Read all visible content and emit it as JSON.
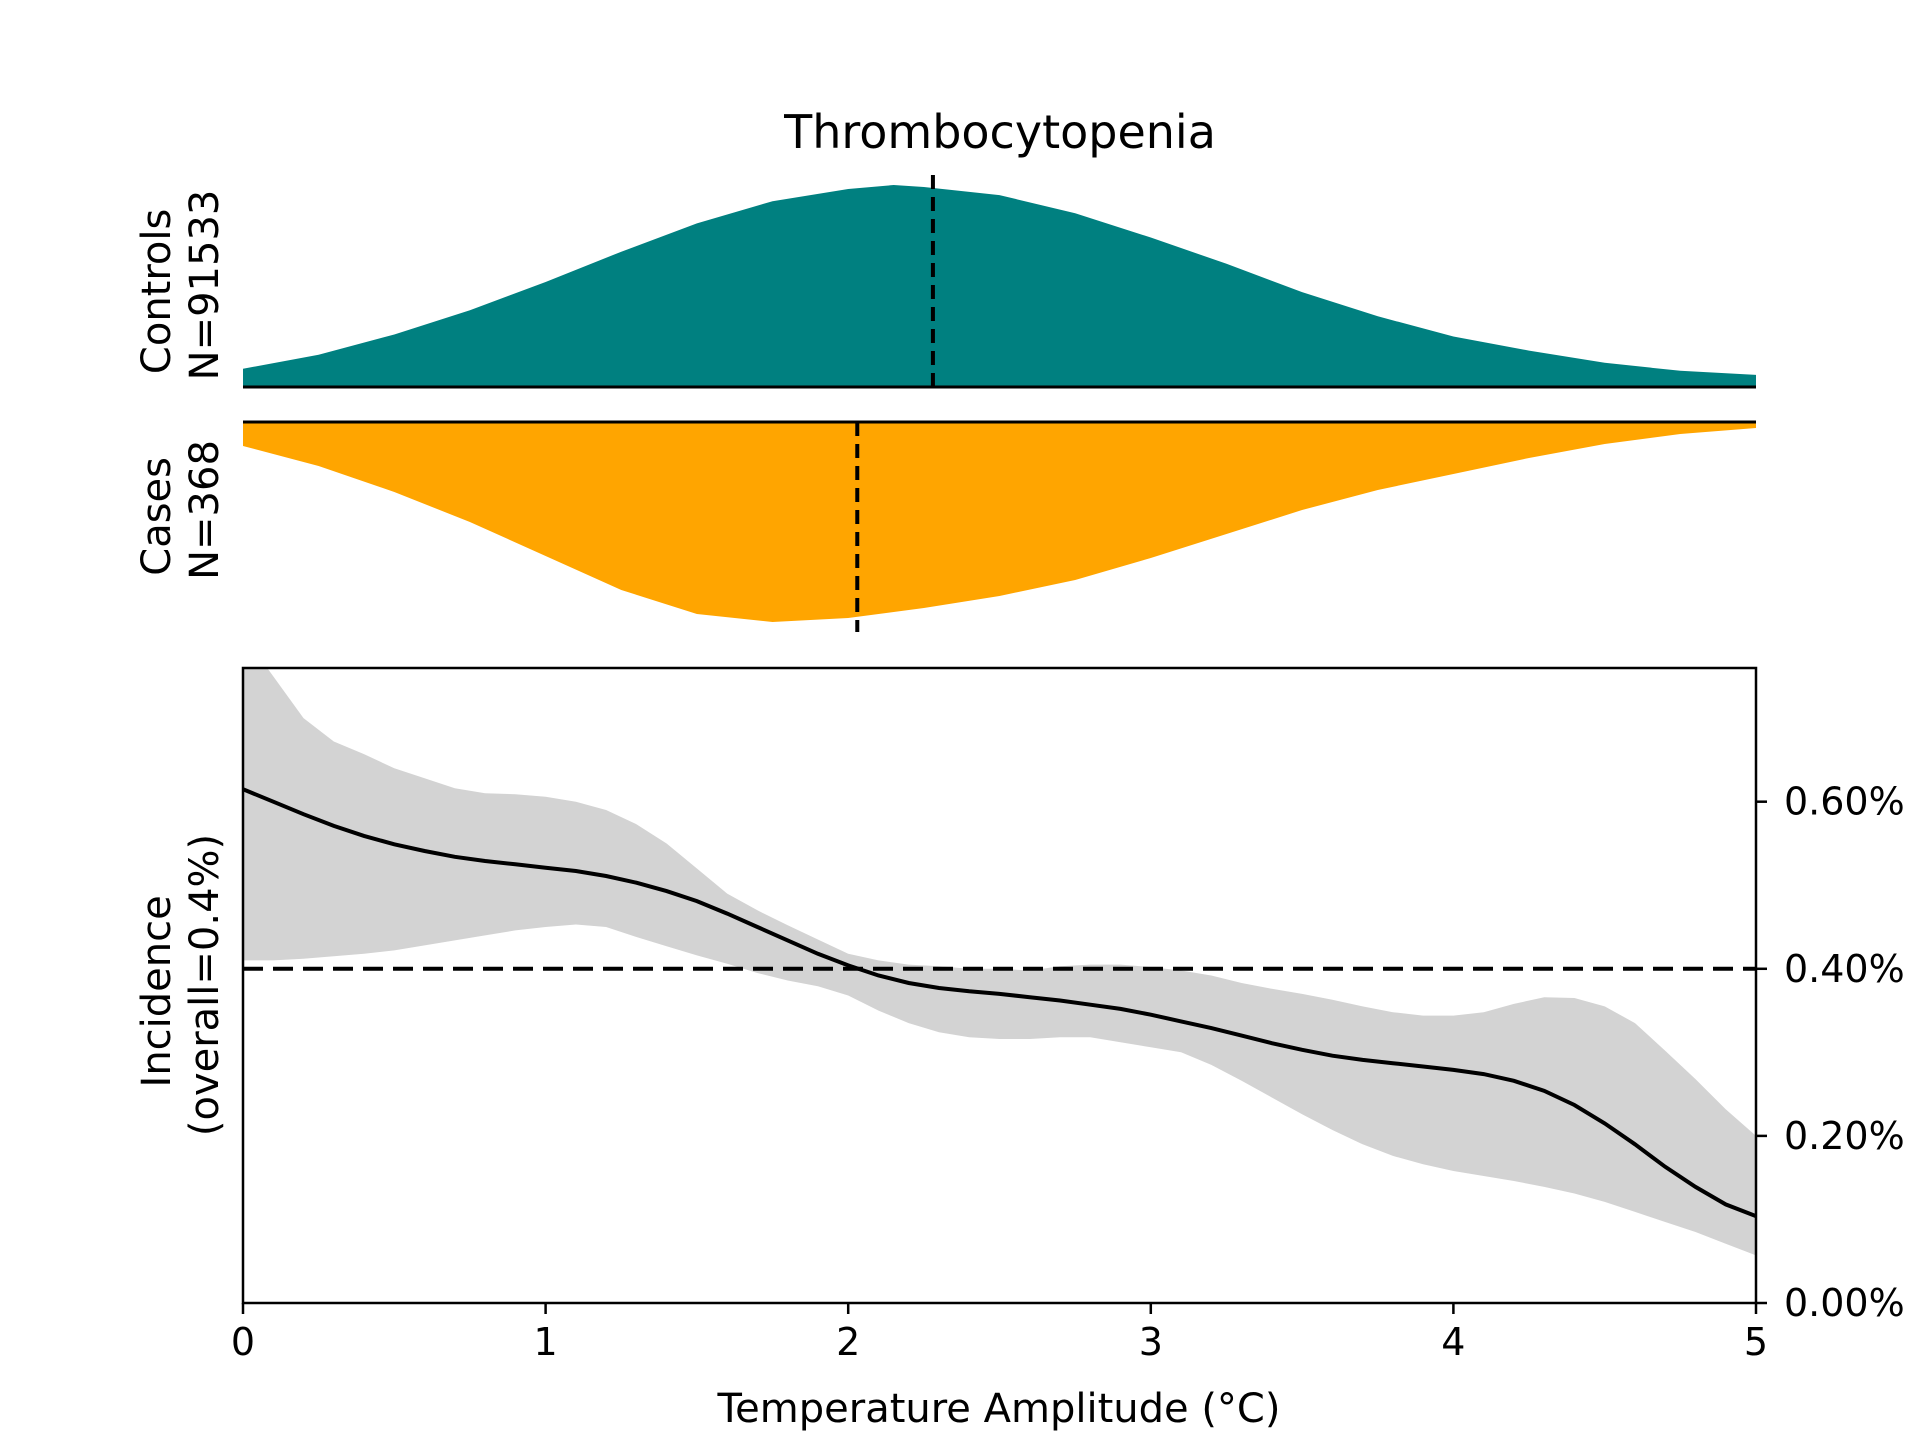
{
  "chart_data": {
    "type": "area",
    "title": "Thrombocytopenia",
    "xlabel": "Temperature Amplitude (°C)",
    "xlim": [
      0,
      5
    ],
    "x_ticks": [
      "0",
      "1",
      "2",
      "3",
      "4",
      "5"
    ],
    "colors": {
      "controls": "#008080",
      "cases": "#FFA500",
      "band": "#D3D3D3",
      "line": "#000000"
    },
    "density_panels": {
      "controls": {
        "label_line1": "Controls",
        "label_line2": "N=91533",
        "x": [
          0,
          0.25,
          0.5,
          0.75,
          1,
          1.25,
          1.5,
          1.75,
          2,
          2.15,
          2.25,
          2.5,
          2.75,
          3,
          3.25,
          3.5,
          3.75,
          4,
          4.25,
          4.5,
          4.75,
          5
        ],
        "density": [
          0.09,
          0.16,
          0.26,
          0.38,
          0.52,
          0.67,
          0.81,
          0.92,
          0.98,
          1.0,
          0.99,
          0.95,
          0.86,
          0.74,
          0.61,
          0.47,
          0.35,
          0.25,
          0.18,
          0.12,
          0.08,
          0.06
        ],
        "median": 2.28
      },
      "cases": {
        "label_line1": "Cases",
        "label_line2": "N=368",
        "x": [
          0,
          0.25,
          0.5,
          0.75,
          1,
          1.25,
          1.5,
          1.75,
          2,
          2.25,
          2.5,
          2.75,
          3,
          3.25,
          3.5,
          3.75,
          4,
          4.25,
          4.5,
          4.75,
          5
        ],
        "density": [
          0.12,
          0.22,
          0.35,
          0.5,
          0.67,
          0.84,
          0.96,
          1.0,
          0.98,
          0.93,
          0.87,
          0.79,
          0.68,
          0.56,
          0.44,
          0.34,
          0.26,
          0.18,
          0.11,
          0.06,
          0.03
        ],
        "median": 2.03
      }
    },
    "incidence": {
      "ylabel_line1": "Incidence",
      "ylabel_line2": "(overall=0.4%)",
      "ylim": [
        0,
        0.76
      ],
      "y_ticks": [
        {
          "value": 0.0,
          "label": "0.00%"
        },
        {
          "value": 0.2,
          "label": "0.20%"
        },
        {
          "value": 0.4,
          "label": "0.40%"
        },
        {
          "value": 0.6,
          "label": "0.60%"
        }
      ],
      "overall": 0.4,
      "x": [
        0,
        0.1,
        0.2,
        0.3,
        0.4,
        0.5,
        0.6,
        0.7,
        0.8,
        0.9,
        1.0,
        1.1,
        1.2,
        1.3,
        1.4,
        1.5,
        1.6,
        1.7,
        1.8,
        1.9,
        2.0,
        2.1,
        2.2,
        2.3,
        2.4,
        2.5,
        2.6,
        2.7,
        2.8,
        2.9,
        3.0,
        3.1,
        3.2,
        3.3,
        3.4,
        3.5,
        3.6,
        3.7,
        3.8,
        3.9,
        4.0,
        4.1,
        4.2,
        4.3,
        4.4,
        4.5,
        4.6,
        4.7,
        4.8,
        4.9,
        5.0
      ],
      "mean": [
        0.615,
        0.6,
        0.585,
        0.571,
        0.559,
        0.549,
        0.541,
        0.534,
        0.529,
        0.525,
        0.521,
        0.517,
        0.511,
        0.503,
        0.493,
        0.481,
        0.466,
        0.45,
        0.434,
        0.418,
        0.404,
        0.392,
        0.383,
        0.377,
        0.373,
        0.37,
        0.366,
        0.362,
        0.357,
        0.352,
        0.345,
        0.337,
        0.329,
        0.32,
        0.311,
        0.303,
        0.296,
        0.291,
        0.287,
        0.283,
        0.279,
        0.274,
        0.266,
        0.254,
        0.237,
        0.215,
        0.19,
        0.163,
        0.139,
        0.118,
        0.104
      ],
      "upper": [
        0.8,
        0.75,
        0.7,
        0.672,
        0.657,
        0.64,
        0.628,
        0.616,
        0.61,
        0.609,
        0.606,
        0.6,
        0.59,
        0.573,
        0.55,
        0.52,
        0.49,
        0.47,
        0.452,
        0.435,
        0.418,
        0.41,
        0.405,
        0.403,
        0.4,
        0.4,
        0.398,
        0.403,
        0.405,
        0.405,
        0.402,
        0.398,
        0.392,
        0.383,
        0.376,
        0.37,
        0.363,
        0.355,
        0.348,
        0.344,
        0.344,
        0.348,
        0.358,
        0.366,
        0.365,
        0.355,
        0.335,
        0.302,
        0.268,
        0.232,
        0.2
      ],
      "lower": [
        0.41,
        0.41,
        0.412,
        0.415,
        0.418,
        0.422,
        0.428,
        0.434,
        0.44,
        0.446,
        0.45,
        0.453,
        0.45,
        0.438,
        0.427,
        0.416,
        0.406,
        0.395,
        0.386,
        0.379,
        0.368,
        0.35,
        0.335,
        0.324,
        0.318,
        0.316,
        0.316,
        0.318,
        0.318,
        0.312,
        0.306,
        0.3,
        0.285,
        0.266,
        0.246,
        0.226,
        0.207,
        0.19,
        0.176,
        0.166,
        0.158,
        0.152,
        0.146,
        0.139,
        0.131,
        0.121,
        0.109,
        0.097,
        0.085,
        0.071,
        0.057
      ]
    }
  }
}
